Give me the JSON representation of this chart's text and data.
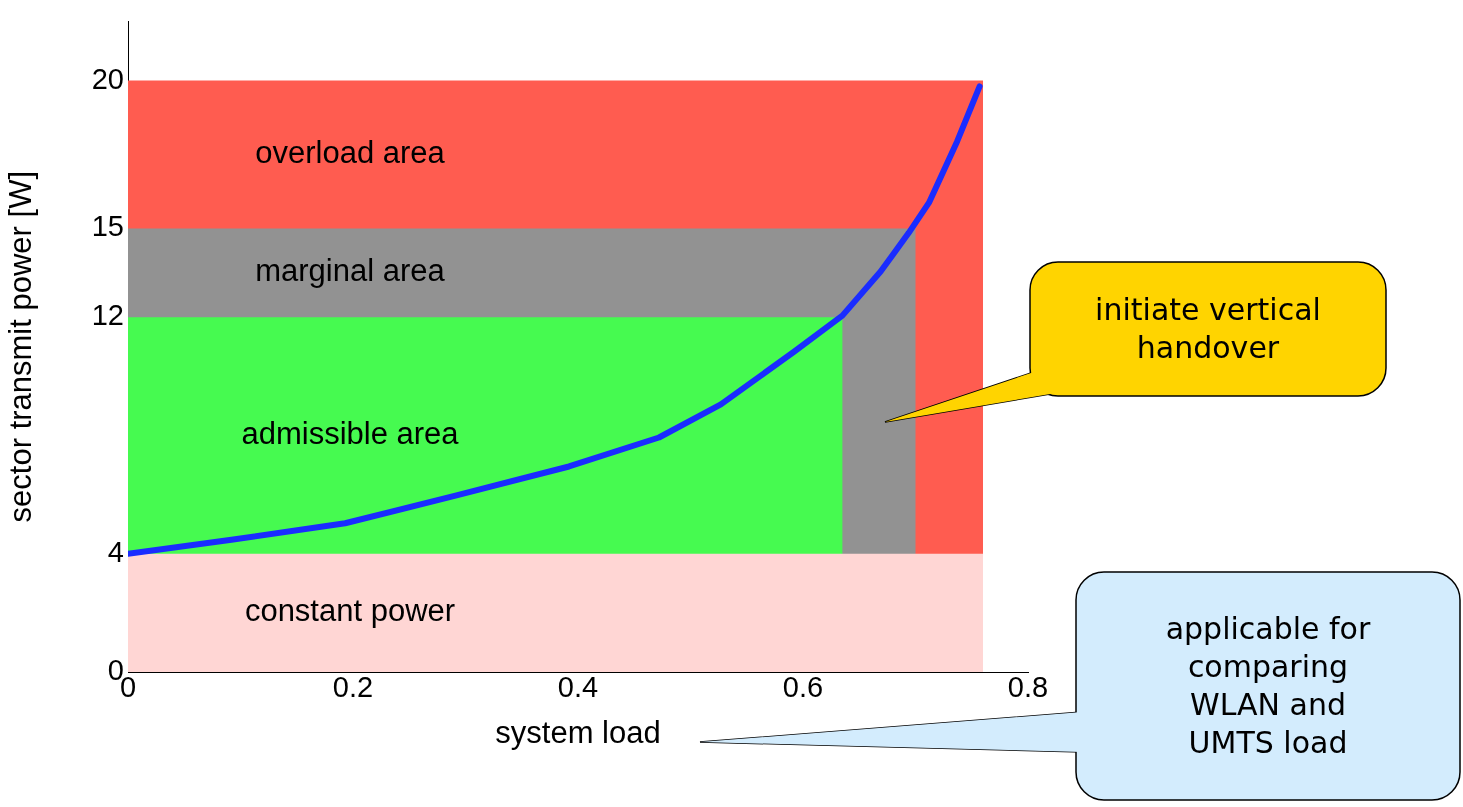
{
  "chart_data": {
    "type": "line",
    "xlabel": "system load",
    "ylabel": "sector transmit power [W]",
    "xlim": [
      0,
      0.8
    ],
    "xticks": [
      0,
      0.2,
      0.4,
      0.6,
      0.8
    ],
    "ylim": [
      0,
      22
    ],
    "yticks": [
      0,
      4,
      12,
      15,
      20
    ],
    "grid": false,
    "legend": false,
    "marker": "none",
    "line_style": "solid",
    "series": [
      {
        "type": "area",
        "name": "overload area",
        "color": "#ff5c50",
        "x": [
          0,
          0.76
        ],
        "values": [
          20,
          20
        ]
      },
      {
        "type": "area",
        "name": "marginal area",
        "color": "#929292",
        "x": [
          0,
          0.7
        ],
        "values": [
          15,
          15
        ]
      },
      {
        "type": "area",
        "name": "admissible area",
        "color": "#46fa50",
        "x": [
          0,
          0.635
        ],
        "values": [
          12,
          12
        ]
      },
      {
        "type": "area",
        "name": "constant power",
        "color": "#ffd6d4",
        "x": [
          0,
          0.76
        ],
        "values": [
          4,
          4
        ]
      },
      {
        "type": "line",
        "color": "#1a2cff",
        "x": [
          0,
          0.092,
          0.193,
          0.292,
          0.392,
          0.472,
          0.527,
          0.592,
          0.635,
          0.669,
          0.694,
          0.712,
          0.737,
          0.757
        ],
        "values": [
          4,
          4.47,
          5.03,
          5.97,
          6.95,
          7.93,
          9.05,
          10.83,
          12.05,
          13.54,
          14.85,
          15.87,
          17.94,
          19.8
        ]
      }
    ],
    "annotations": [
      "initiate vertical handover",
      "applicable for comparing WLAN and UMTS load"
    ]
  }
}
